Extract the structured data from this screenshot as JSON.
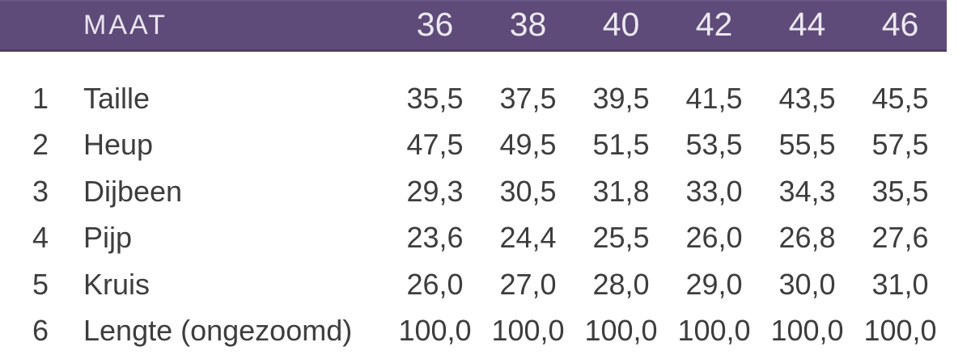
{
  "chart_data": {
    "type": "table",
    "header_label": "MAAT",
    "columns": [
      "36",
      "38",
      "40",
      "42",
      "44",
      "46"
    ],
    "rows": [
      {
        "num": "1",
        "label": "Taille",
        "values": [
          "35,5",
          "37,5",
          "39,5",
          "41,5",
          "43,5",
          "45,5"
        ]
      },
      {
        "num": "2",
        "label": "Heup",
        "values": [
          "47,5",
          "49,5",
          "51,5",
          "53,5",
          "55,5",
          "57,5"
        ]
      },
      {
        "num": "3",
        "label": "Dijbeen",
        "values": [
          "29,3",
          "30,5",
          "31,8",
          "33,0",
          "34,3",
          "35,5"
        ]
      },
      {
        "num": "4",
        "label": "Pijp",
        "values": [
          "23,6",
          "24,4",
          "25,5",
          "26,0",
          "26,8",
          "27,6"
        ]
      },
      {
        "num": "5",
        "label": "Kruis",
        "values": [
          "26,0",
          "27,0",
          "28,0",
          "29,0",
          "30,0",
          "31,0"
        ]
      },
      {
        "num": "6",
        "label": "Lengte (ongezoomd)",
        "values": [
          "100,0",
          "100,0",
          "100,0",
          "100,0",
          "100,0",
          "100,0"
        ]
      }
    ]
  },
  "colors": {
    "header_background": "#5e4b79",
    "header_border_top": "#695586",
    "header_border_bottom": "#4e3f66",
    "header_text": "#ece8f2",
    "body_text": "#3d3d3d",
    "page_background": "#ffffff"
  }
}
